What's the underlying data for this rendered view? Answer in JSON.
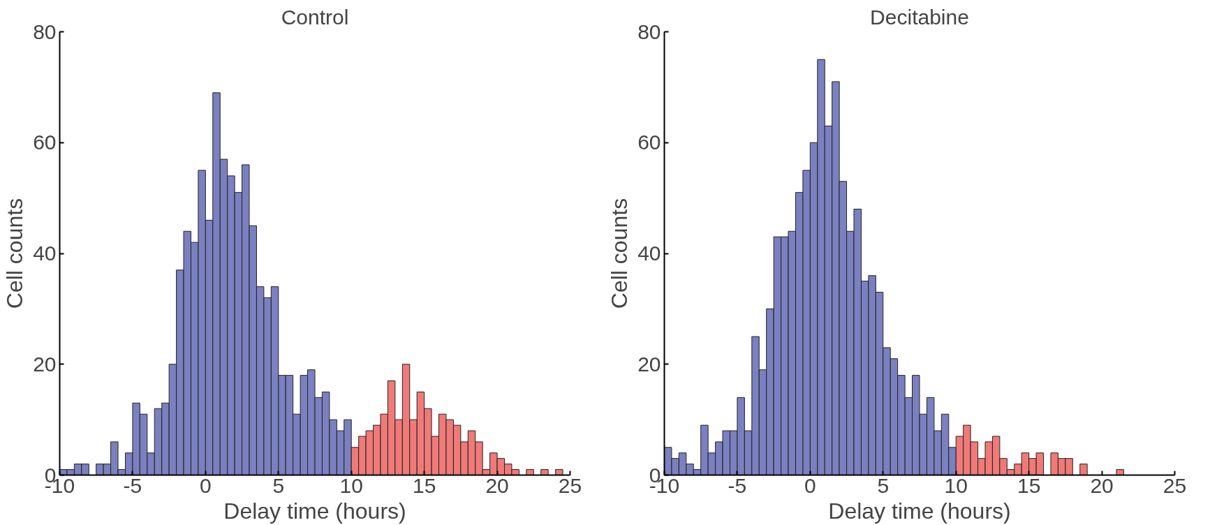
{
  "chart_data": [
    {
      "type": "histogram",
      "title": "Control",
      "xlabel": "Delay time (hours)",
      "ylabel": "Cell counts",
      "xlim": [
        -10,
        25
      ],
      "ylim": [
        0,
        80
      ],
      "xticks": [
        -10,
        -5,
        0,
        5,
        10,
        15,
        20,
        25
      ],
      "yticks": [
        0,
        20,
        40,
        60,
        80
      ],
      "grid": false,
      "bins": [
        -10,
        -9.5,
        -9,
        -8.5,
        -8,
        -7.5,
        -7,
        -6.5,
        -6,
        -5.5,
        -5,
        -4.5,
        -4,
        -3.5,
        -3,
        -2.5,
        -2,
        -1.5,
        -1,
        -0.5,
        0,
        0.5,
        1,
        1.5,
        2,
        2.5,
        3,
        3.5,
        4,
        4.5,
        5,
        5.5,
        6,
        6.5,
        7,
        7.5,
        8,
        8.5,
        9,
        9.5,
        10,
        10.5,
        11,
        11.5,
        12,
        12.5,
        13,
        13.5,
        14,
        14.5,
        15,
        15.5,
        16,
        16.5,
        17,
        17.5,
        18,
        18.5,
        19,
        19.5,
        20,
        20.5,
        21,
        21.5,
        22,
        22.5,
        23,
        23.5,
        24,
        24.5,
        25
      ],
      "values": [
        1,
        1,
        2,
        2,
        0,
        2,
        2,
        6,
        1,
        4,
        13,
        11,
        4,
        12,
        13,
        20,
        37,
        44,
        42,
        55,
        46,
        69,
        57,
        54,
        51,
        56,
        45,
        34,
        32,
        34,
        18,
        18,
        11,
        18,
        19,
        14,
        15,
        10,
        8,
        10,
        5,
        7,
        8,
        9,
        11,
        17,
        10,
        20,
        10,
        15,
        12,
        7,
        11,
        10,
        9,
        6,
        8,
        6,
        1,
        4,
        3,
        2,
        1,
        0,
        1,
        0,
        1,
        0,
        1,
        0
      ],
      "colors": [
        "#7b80c0",
        "#7b80c0",
        "#7b80c0",
        "#7b80c0",
        "#7b80c0",
        "#7b80c0",
        "#7b80c0",
        "#7b80c0",
        "#7b80c0",
        "#7b80c0",
        "#7b80c0",
        "#7b80c0",
        "#7b80c0",
        "#7b80c0",
        "#7b80c0",
        "#7b80c0",
        "#7b80c0",
        "#7b80c0",
        "#7b80c0",
        "#7b80c0",
        "#7b80c0",
        "#7b80c0",
        "#7b80c0",
        "#7b80c0",
        "#7b80c0",
        "#7b80c0",
        "#7b80c0",
        "#7b80c0",
        "#7b80c0",
        "#7b80c0",
        "#7b80c0",
        "#7b80c0",
        "#7b80c0",
        "#7b80c0",
        "#7b80c0",
        "#7b80c0",
        "#7b80c0",
        "#7b80c0",
        "#7b80c0",
        "#7b80c0",
        "#f07a78",
        "#f07a78",
        "#f07a78",
        "#f07a78",
        "#f07a78",
        "#f07a78",
        "#f07a78",
        "#f07a78",
        "#f07a78",
        "#f07a78",
        "#f07a78",
        "#f07a78",
        "#f07a78",
        "#f07a78",
        "#f07a78",
        "#f07a78",
        "#f07a78",
        "#f07a78",
        "#f07a78",
        "#f07a78",
        "#f07a78",
        "#f07a78",
        "#f07a78",
        "#f07a78",
        "#f07a78",
        "#f07a78",
        "#f07a78",
        "#f07a78",
        "#f07a78",
        "#f07a78"
      ]
    },
    {
      "type": "histogram",
      "title": "Decitabine",
      "xlabel": "Delay time (hours)",
      "ylabel": "Cell counts",
      "xlim": [
        -10,
        25
      ],
      "ylim": [
        0,
        80
      ],
      "xticks": [
        -10,
        -5,
        0,
        5,
        10,
        15,
        20,
        25
      ],
      "yticks": [
        0,
        20,
        40,
        60,
        80
      ],
      "grid": false,
      "bins": [
        -10,
        -9.5,
        -9,
        -8.5,
        -8,
        -7.5,
        -7,
        -6.5,
        -6,
        -5.5,
        -5,
        -4.5,
        -4,
        -3.5,
        -3,
        -2.5,
        -2,
        -1.5,
        -1,
        -0.5,
        0,
        0.5,
        1,
        1.5,
        2,
        2.5,
        3,
        3.5,
        4,
        4.5,
        5,
        5.5,
        6,
        6.5,
        7,
        7.5,
        8,
        8.5,
        9,
        9.5,
        10,
        10.5,
        11,
        11.5,
        12,
        12.5,
        13,
        13.5,
        14,
        14.5,
        15,
        15.5,
        16,
        16.5,
        17,
        17.5,
        18,
        18.5,
        19,
        19.5,
        20,
        20.5,
        21,
        21.5,
        22,
        22.5,
        23,
        23.5,
        24,
        24.5,
        25
      ],
      "values": [
        5,
        3,
        4,
        2,
        1,
        9,
        4,
        6,
        8,
        8,
        14,
        8,
        25,
        19,
        30,
        43,
        43,
        44,
        51,
        55,
        60,
        75,
        63,
        71,
        53,
        44,
        48,
        35,
        36,
        33,
        23,
        21,
        18,
        14,
        18,
        11,
        14,
        8,
        11,
        5,
        7,
        9,
        6,
        3,
        6,
        7,
        3,
        1,
        2,
        4,
        3,
        4,
        0,
        4,
        3,
        3,
        0,
        2,
        0,
        0,
        0,
        0,
        1,
        0,
        0,
        0,
        0,
        0,
        0,
        0
      ],
      "colors": [
        "#7b80c0",
        "#7b80c0",
        "#7b80c0",
        "#7b80c0",
        "#7b80c0",
        "#7b80c0",
        "#7b80c0",
        "#7b80c0",
        "#7b80c0",
        "#7b80c0",
        "#7b80c0",
        "#7b80c0",
        "#7b80c0",
        "#7b80c0",
        "#7b80c0",
        "#7b80c0",
        "#7b80c0",
        "#7b80c0",
        "#7b80c0",
        "#7b80c0",
        "#7b80c0",
        "#7b80c0",
        "#7b80c0",
        "#7b80c0",
        "#7b80c0",
        "#7b80c0",
        "#7b80c0",
        "#7b80c0",
        "#7b80c0",
        "#7b80c0",
        "#7b80c0",
        "#7b80c0",
        "#7b80c0",
        "#7b80c0",
        "#7b80c0",
        "#7b80c0",
        "#7b80c0",
        "#7b80c0",
        "#7b80c0",
        "#7b80c0",
        "#f07a78",
        "#f07a78",
        "#f07a78",
        "#f07a78",
        "#f07a78",
        "#f07a78",
        "#f07a78",
        "#f07a78",
        "#f07a78",
        "#f07a78",
        "#f07a78",
        "#f07a78",
        "#f07a78",
        "#f07a78",
        "#f07a78",
        "#f07a78",
        "#f07a78",
        "#f07a78",
        "#f07a78",
        "#f07a78",
        "#f07a78",
        "#f07a78",
        "#f07a78",
        "#f07a78",
        "#f07a78",
        "#f07a78",
        "#f07a78",
        "#f07a78",
        "#f07a78",
        "#f07a78"
      ]
    }
  ]
}
